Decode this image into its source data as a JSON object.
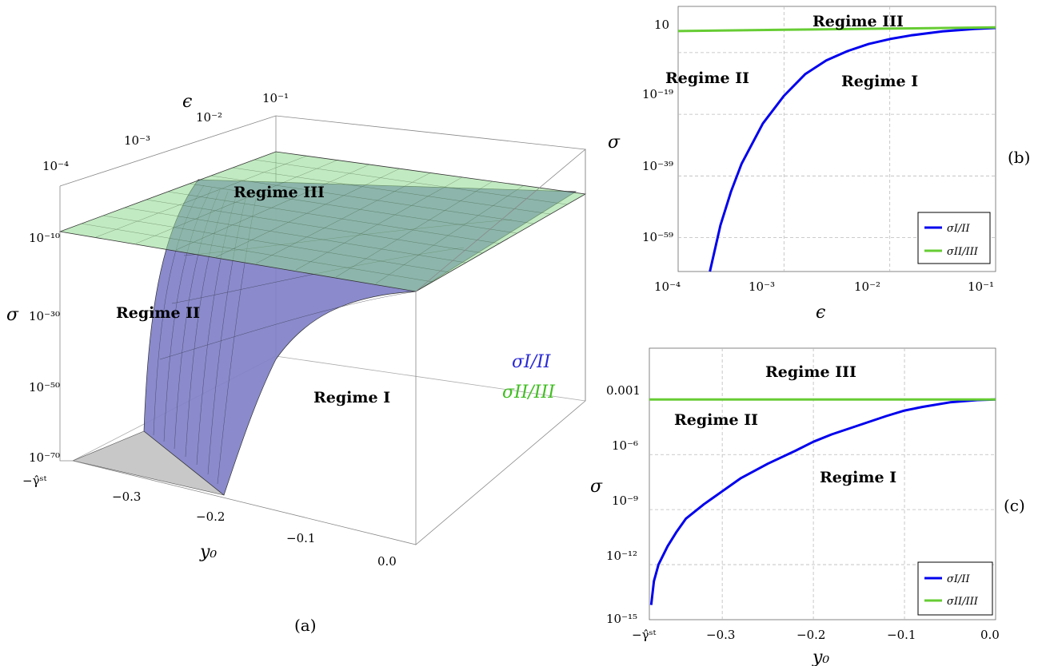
{
  "chart_data": [
    {
      "panel": "(a)",
      "type": "surface",
      "xlabel": "y₀",
      "ylabel": "ϵ",
      "zlabel": "σ",
      "x_ticks": [
        "−γ̂ˢᵗ",
        "−0.3",
        "−0.2",
        "−0.1",
        "0.0"
      ],
      "y_ticks": [
        "10⁻⁴",
        "10⁻³",
        "10⁻²",
        "10⁻¹"
      ],
      "z_ticks": [
        "10⁻⁷⁰",
        "10⁻⁵⁰",
        "10⁻³⁰",
        "10⁻¹⁰"
      ],
      "regions": [
        "Regime I",
        "Regime II",
        "Regime III"
      ],
      "surface_labels": [
        {
          "name": "σI/II",
          "color": "#2a2ad6"
        },
        {
          "name": "σII/III",
          "color": "#3fbf1f"
        }
      ]
    },
    {
      "panel": "(b)",
      "type": "line",
      "xlabel": "ϵ",
      "ylabel": "σ",
      "xscale": "log",
      "yscale": "log",
      "xlim_exp": [
        -4,
        -1
      ],
      "ylim_exp": [
        -70,
        16
      ],
      "x_ticks": [
        "10⁻⁴",
        "10⁻³",
        "10⁻²",
        "10⁻¹"
      ],
      "y_ticks": [
        "10",
        "10⁻¹⁹",
        "10⁻³⁹",
        "10⁻⁵⁹"
      ],
      "grid": true,
      "legend_position": "bottom-right",
      "regions": [
        "Regime III",
        "Regime II",
        "Regime I"
      ],
      "series": [
        {
          "name": "σI/II",
          "color": "#0000ee",
          "log10_x": [
            -3.7,
            -3.6,
            -3.5,
            -3.4,
            -3.2,
            -3.0,
            -2.8,
            -2.6,
            -2.4,
            -2.2,
            -2.0,
            -1.8,
            -1.5,
            -1.2,
            -1.0
          ],
          "log10_y": [
            -70,
            -55,
            -44,
            -35,
            -22,
            -13,
            -6,
            -1.5,
            1.5,
            3.8,
            5.4,
            6.6,
            7.9,
            8.7,
            9.0
          ]
        },
        {
          "name": "σII/III",
          "color": "#66cc33",
          "log10_x": [
            -4,
            -3,
            -2,
            -1
          ],
          "log10_y": [
            8.0,
            8.4,
            8.8,
            9.2
          ]
        }
      ]
    },
    {
      "panel": "(c)",
      "type": "line",
      "xlabel": "y₀",
      "ylabel": "σ",
      "yscale": "log",
      "xlim": [
        -0.38,
        0.0
      ],
      "ylim_exp": [
        -15,
        -0.2
      ],
      "x_ticks": [
        "−γ̂ˢᵗ",
        "−0.3",
        "−0.2",
        "−0.1",
        "0.0"
      ],
      "x_tick_values": [
        -0.38,
        -0.3,
        -0.2,
        -0.1,
        0.0
      ],
      "y_ticks": [
        "0.001",
        "10⁻⁶",
        "10⁻⁹",
        "10⁻¹²",
        "10⁻¹⁵"
      ],
      "grid": true,
      "legend_position": "bottom-right",
      "regions": [
        "Regime III",
        "Regime II",
        "Regime I"
      ],
      "series": [
        {
          "name": "σI/II",
          "color": "#0000ee",
          "x": [
            -0.378,
            -0.375,
            -0.37,
            -0.36,
            -0.35,
            -0.34,
            -0.32,
            -0.3,
            -0.28,
            -0.25,
            -0.22,
            -0.2,
            -0.18,
            -0.15,
            -0.12,
            -0.1,
            -0.08,
            -0.05,
            -0.02,
            0.0
          ],
          "log10_y": [
            -14.2,
            -12.9,
            -12.0,
            -11.0,
            -10.2,
            -9.5,
            -8.7,
            -8.0,
            -7.3,
            -6.5,
            -5.8,
            -5.3,
            -4.9,
            -4.4,
            -3.9,
            -3.6,
            -3.4,
            -3.15,
            -3.03,
            -3.0
          ]
        },
        {
          "name": "σII/III",
          "color": "#66cc33",
          "x": [
            -0.38,
            0.0
          ],
          "log10_y": [
            -3.0,
            -3.0
          ]
        }
      ]
    }
  ]
}
